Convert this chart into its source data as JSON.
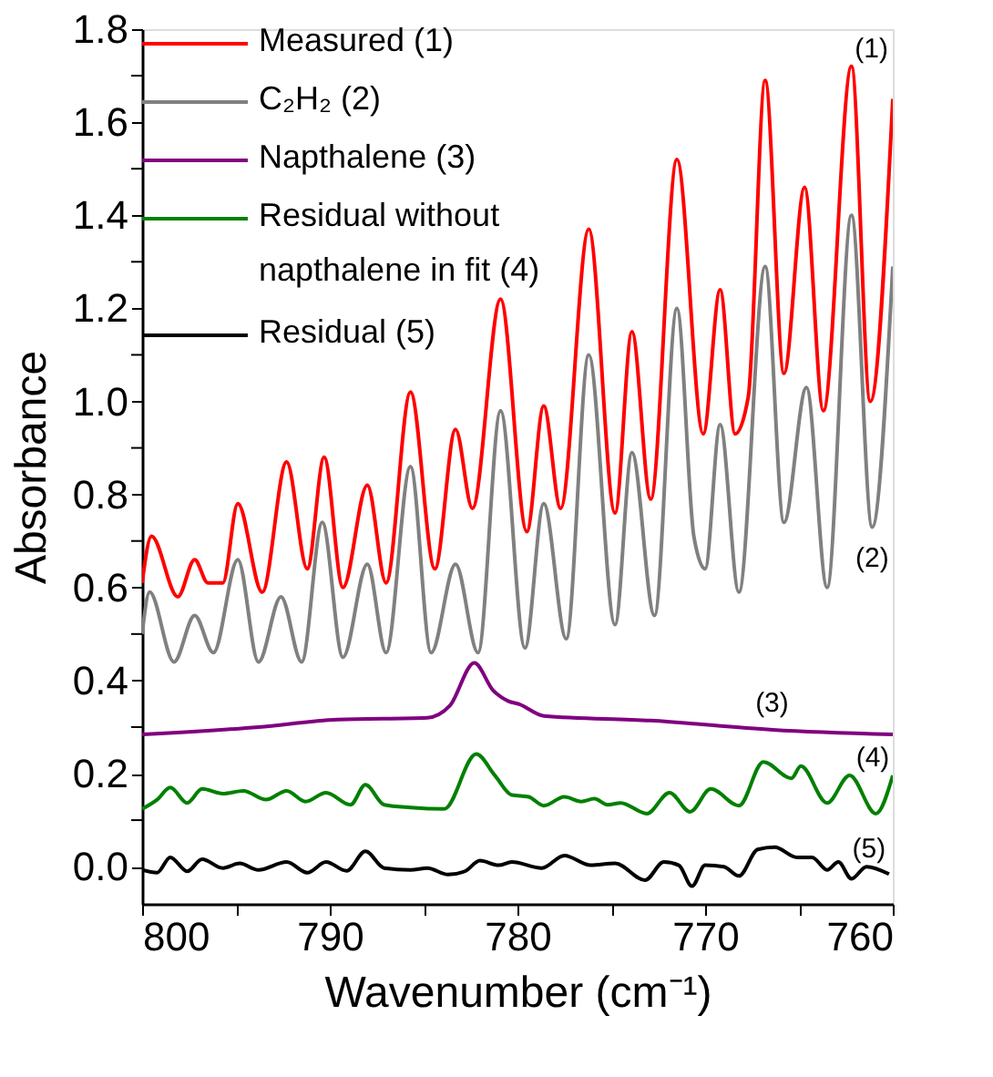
{
  "chart_data": {
    "type": "line",
    "xlabel": "Wavenumber (cm⁻¹)",
    "ylabel": "Absorbance",
    "xlim": [
      800,
      760
    ],
    "ylim": [
      -0.08,
      1.8
    ],
    "xticks": [
      800,
      {
        "value": 795,
        "label": null
      },
      790,
      {
        "value": 785,
        "label": null
      },
      780,
      {
        "value": 775,
        "label": null
      },
      770,
      {
        "value": 765,
        "label": null
      },
      760
    ],
    "yticks": [
      {
        "value": 0,
        "label": "0.0"
      },
      {
        "value": 0.1,
        "label": null
      },
      {
        "value": 0.2,
        "label": "0.2"
      },
      {
        "value": 0.3,
        "label": null
      },
      {
        "value": 0.4,
        "label": "0.4"
      },
      {
        "value": 0.5,
        "label": null
      },
      {
        "value": 0.6,
        "label": "0.6"
      },
      {
        "value": 0.7,
        "label": null
      },
      {
        "value": 0.8,
        "label": "0.8"
      },
      {
        "value": 0.9,
        "label": null
      },
      {
        "value": 1.0,
        "label": "1.0"
      },
      {
        "value": 1.1,
        "label": null
      },
      {
        "value": 1.2,
        "label": "1.2"
      },
      {
        "value": 1.3,
        "label": null
      },
      {
        "value": 1.4,
        "label": "1.4"
      },
      {
        "value": 1.5,
        "label": null
      },
      {
        "value": 1.6,
        "label": "1.6"
      },
      {
        "value": 1.7,
        "label": null
      },
      {
        "value": 1.8,
        "label": "1.8"
      }
    ],
    "grid": false,
    "legend": "top left",
    "marker": "none",
    "line_style": "solid",
    "series": [
      {
        "name": "Measured (1)",
        "color": "#ff0000",
        "x": [
          800,
          799.5,
          798.1,
          797.2,
          796.5,
          795.7,
          794.9,
          793.6,
          792.3,
          791.2,
          790.3,
          789.3,
          788.0,
          787.0,
          785.7,
          784.4,
          783.3,
          782.4,
          780.9,
          779.5,
          778.6,
          777.7,
          776.2,
          774.8,
          773.9,
          772.9,
          771.5,
          770.1,
          769.2,
          768.4,
          767.7,
          766.8,
          765.8,
          764.7,
          763.7,
          762.2,
          761.2,
          760.0
        ],
        "values": [
          0.61,
          0.71,
          0.58,
          0.66,
          0.61,
          0.61,
          0.78,
          0.59,
          0.87,
          0.64,
          0.88,
          0.6,
          0.82,
          0.61,
          1.02,
          0.64,
          0.94,
          0.77,
          1.22,
          0.72,
          0.99,
          0.77,
          1.37,
          0.76,
          1.15,
          0.79,
          1.52,
          0.93,
          1.24,
          0.93,
          1.01,
          1.69,
          1.06,
          1.46,
          0.98,
          1.72,
          1.0,
          1.65
        ]
      },
      {
        "name": "C₂H₂ (2)",
        "color": "#808080",
        "x": [
          800,
          799.6,
          798.3,
          797.2,
          796.2,
          794.9,
          793.8,
          792.6,
          791.5,
          790.4,
          789.3,
          788.0,
          787.0,
          785.7,
          784.6,
          783.3,
          782.1,
          780.9,
          779.6,
          778.6,
          777.4,
          776.2,
          774.8,
          773.9,
          772.7,
          771.5,
          770.6,
          770.0,
          769.2,
          768.2,
          766.8,
          765.8,
          764.6,
          763.5,
          762.2,
          761.1,
          760.0
        ],
        "values": [
          0.5,
          0.59,
          0.44,
          0.54,
          0.46,
          0.66,
          0.44,
          0.58,
          0.44,
          0.74,
          0.45,
          0.65,
          0.46,
          0.86,
          0.46,
          0.65,
          0.46,
          0.98,
          0.47,
          0.78,
          0.49,
          1.1,
          0.52,
          0.89,
          0.54,
          1.2,
          0.71,
          0.64,
          0.95,
          0.59,
          1.29,
          0.74,
          1.03,
          0.6,
          1.4,
          0.73,
          1.29
        ]
      },
      {
        "name": "Napthalene (3)",
        "color": "#800080",
        "x": [
          800,
          793.8,
          789.6,
          784.8,
          783.6,
          782.3,
          781.3,
          780.5,
          779.9,
          778.6,
          772.9,
          766.4,
          760
        ],
        "values": [
          0.284,
          0.3,
          0.316,
          0.32,
          0.346,
          0.438,
          0.379,
          0.356,
          0.349,
          0.324,
          0.314,
          0.294,
          0.284
        ]
      },
      {
        "name": "Residual without napthalene in fit (4)",
        "color": "#008000",
        "x": [
          800,
          799.2,
          798.5,
          797.6,
          796.8,
          795.7,
          794.6,
          793.4,
          792.3,
          791.3,
          790.2,
          788.9,
          788.1,
          787.1,
          785.7,
          783.9,
          782.2,
          781.2,
          780.3,
          779.4,
          778.6,
          777.5,
          776.6,
          775.9,
          775.2,
          774.5,
          773.1,
          771.9,
          770.8,
          769.7,
          768.2,
          766.9,
          765.4,
          764.9,
          763.5,
          762.3,
          760.9,
          760.0
        ],
        "values": [
          0.124,
          0.144,
          0.17,
          0.137,
          0.167,
          0.157,
          0.163,
          0.144,
          0.163,
          0.14,
          0.159,
          0.133,
          0.176,
          0.133,
          0.127,
          0.124,
          0.242,
          0.196,
          0.154,
          0.15,
          0.131,
          0.15,
          0.14,
          0.146,
          0.133,
          0.137,
          0.114,
          0.159,
          0.118,
          0.167,
          0.131,
          0.225,
          0.19,
          0.216,
          0.137,
          0.196,
          0.114,
          0.196
        ]
      },
      {
        "name": "Residual (5)",
        "color": "#000000",
        "x": [
          800,
          799.2,
          798.5,
          797.6,
          796.8,
          795.7,
          794.8,
          793.8,
          792.3,
          791.2,
          790.2,
          789.1,
          788.1,
          787.1,
          785.7,
          784.8,
          783.7,
          782.8,
          782.0,
          781.0,
          780.3,
          778.7,
          777.5,
          776.1,
          774.8,
          773.2,
          772.2,
          771.4,
          770.7,
          770.0,
          769.0,
          768.2,
          767.2,
          766.3,
          765.1,
          764.3,
          763.5,
          762.9,
          762.2,
          761.4,
          760.2
        ],
        "values": [
          -0.007,
          -0.013,
          0.02,
          -0.01,
          0.016,
          -0.003,
          0.007,
          -0.007,
          0.01,
          -0.013,
          0.01,
          -0.009,
          0.033,
          -0.003,
          -0.007,
          -0.003,
          -0.017,
          -0.01,
          0.013,
          0.003,
          0.01,
          -0.003,
          0.024,
          0.003,
          0.007,
          -0.029,
          0.01,
          0.003,
          -0.042,
          0.003,
          0,
          -0.02,
          0.037,
          0.042,
          0.02,
          0.02,
          -0.007,
          0.01,
          -0.026,
          0,
          -0.016
        ]
      }
    ],
    "annotations": [
      "(1)",
      "(2)",
      "(3)",
      "(4)",
      "(5)"
    ]
  }
}
